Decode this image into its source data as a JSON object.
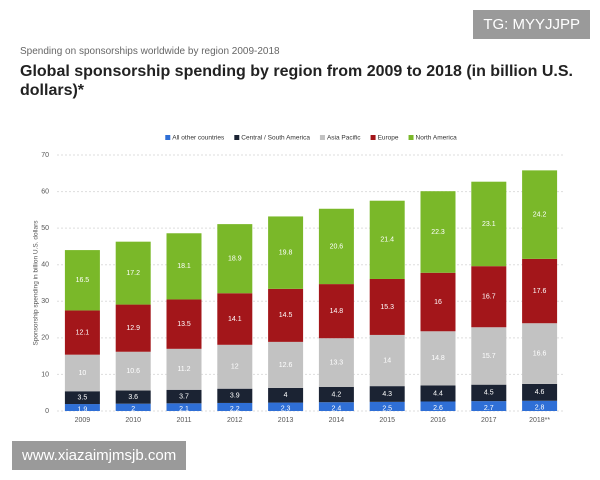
{
  "chart_data": {
    "type": "stacked-bar",
    "subtitle": "Spending on sponsorships worldwide by region 2009-2018",
    "title": "Global sponsorship spending by region from 2009 to 2018 (in billion U.S. dollars)*",
    "y_label": "Sponsorship spending in billion U.S. dollars",
    "categories": [
      "2009",
      "2010",
      "2011",
      "2012",
      "2013",
      "2014",
      "2015",
      "2016",
      "2017",
      "2018**"
    ],
    "series": [
      {
        "name": "All other countries",
        "color": "#2f6fd6",
        "values": [
          1.9,
          2,
          2.1,
          2.2,
          2.3,
          2.4,
          2.5,
          2.6,
          2.7,
          2.8
        ]
      },
      {
        "name": "Central / South America",
        "color": "#1b2333",
        "values": [
          3.5,
          3.6,
          3.7,
          3.9,
          4,
          4.2,
          4.3,
          4.4,
          4.5,
          4.6
        ]
      },
      {
        "name": "Asia Pacific",
        "color": "#c2c2c2",
        "values": [
          10,
          10.6,
          11.2,
          12,
          12.6,
          13.3,
          14,
          14.8,
          15.7,
          16.6
        ]
      },
      {
        "name": "Europe",
        "color": "#a3161a",
        "values": [
          12.1,
          12.9,
          13.5,
          14.1,
          14.5,
          14.8,
          15.3,
          16,
          16.7,
          17.6
        ]
      },
      {
        "name": "North America",
        "color": "#7ab829",
        "values": [
          16.5,
          17.2,
          18.1,
          18.9,
          19.8,
          20.6,
          21.4,
          22.3,
          23.1,
          24.2
        ]
      }
    ],
    "ylim": [
      0,
      70
    ],
    "yticks": [
      0,
      10,
      20,
      30,
      40,
      50,
      60,
      70
    ],
    "grid": true,
    "legend": "top"
  },
  "watermarks": [
    "TG: MYYJJPP",
    "www.xiazaimjmsjb.com"
  ]
}
